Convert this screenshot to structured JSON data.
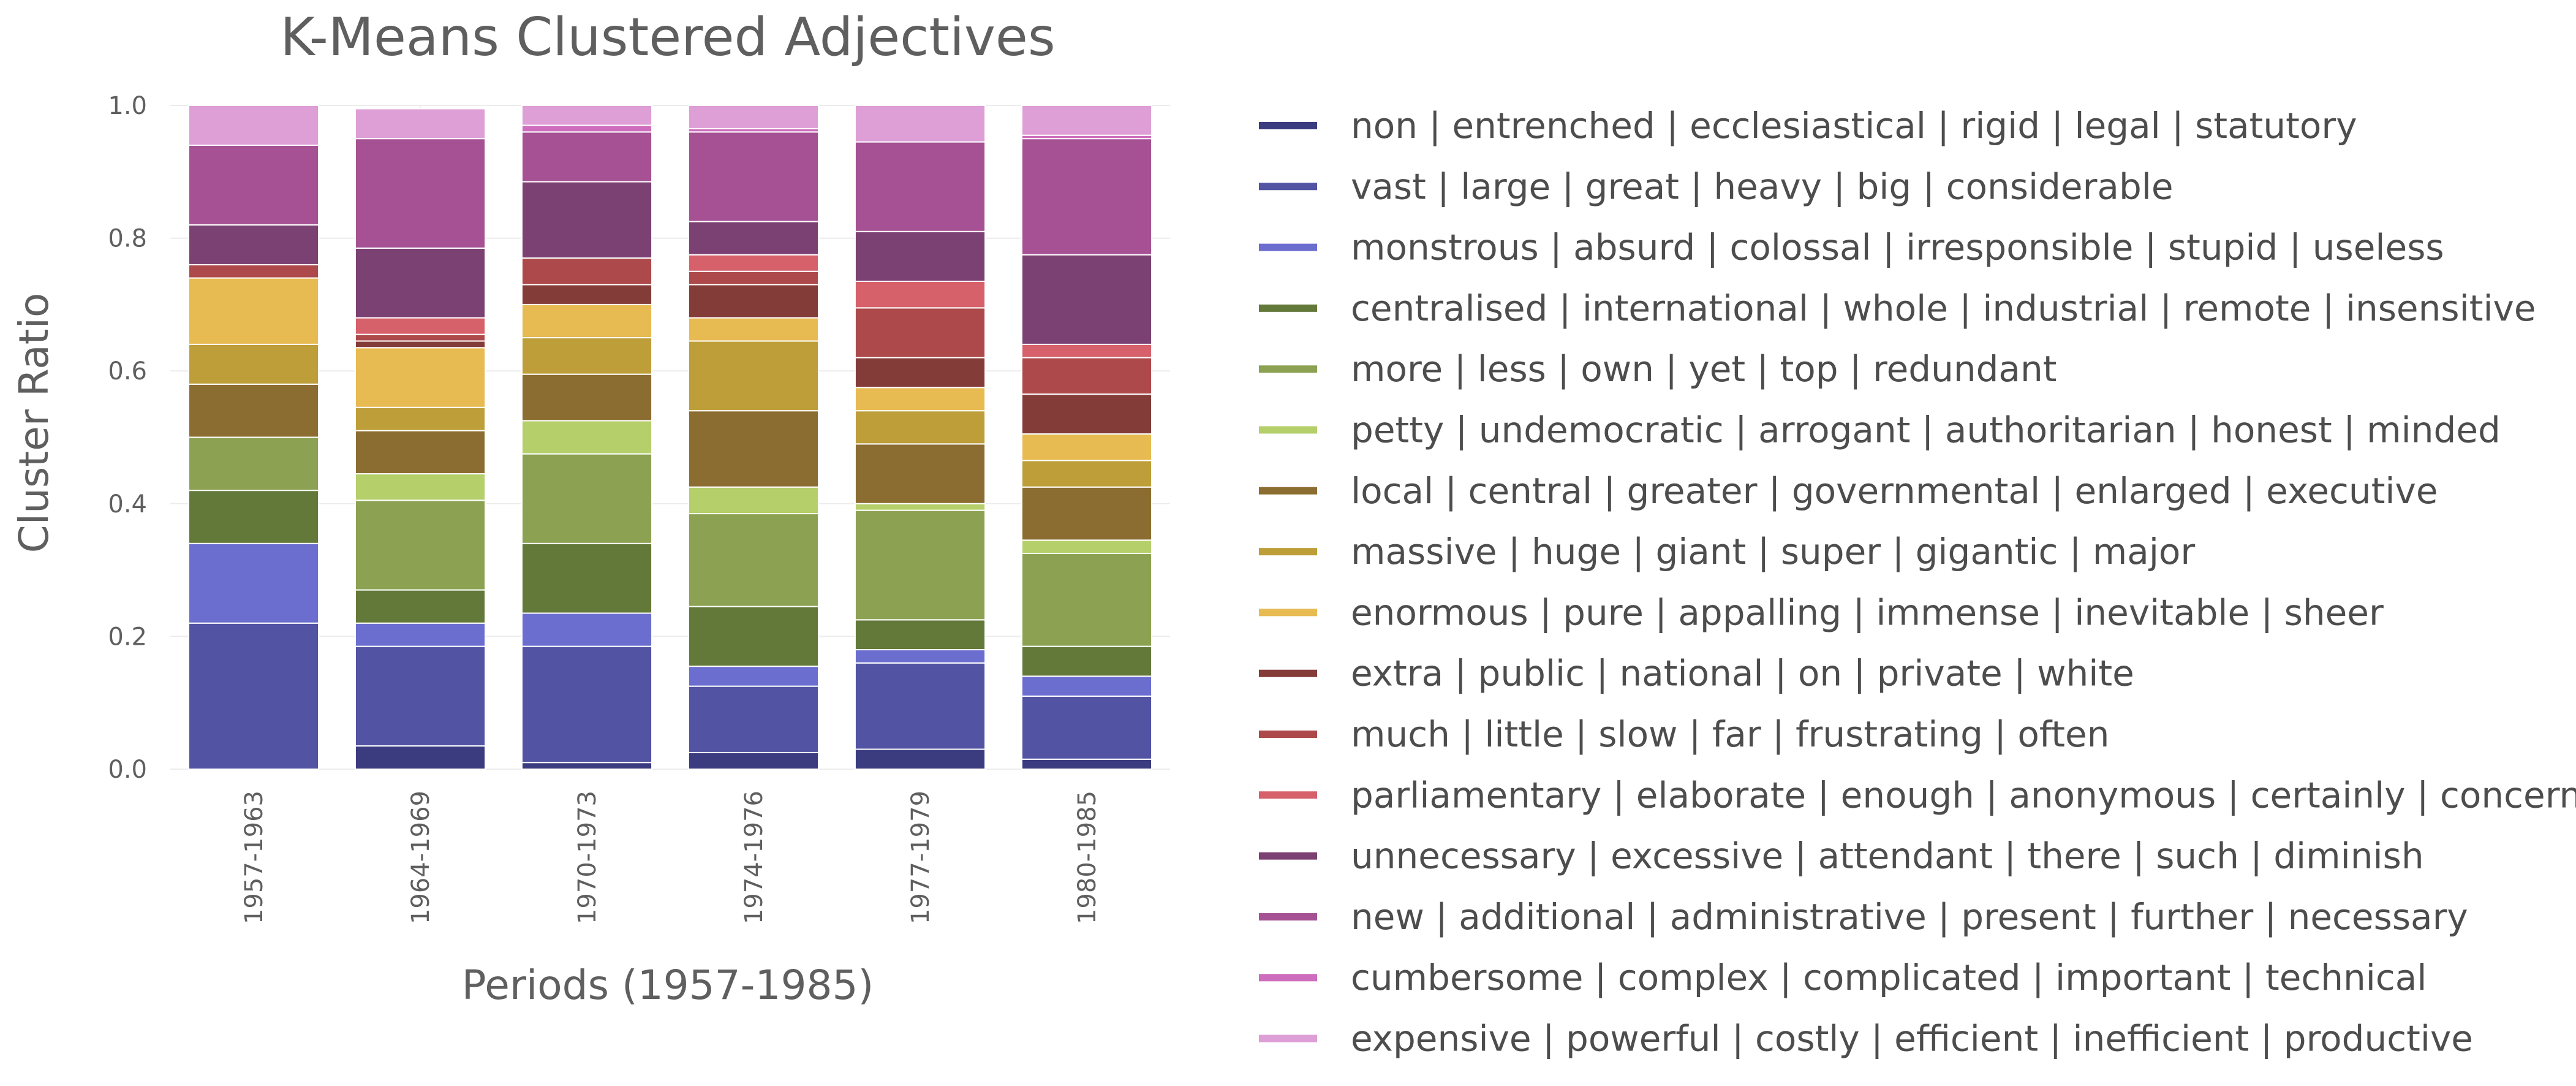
{
  "chart_data": {
    "type": "bar",
    "stacked": true,
    "title": "K-Means Clustered Adjectives",
    "xlabel": "Periods (1957-1985)",
    "ylabel": "Cluster Ratio",
    "ylim": [
      0,
      1.0
    ],
    "yticks": [
      "0.0",
      "0.2",
      "0.4",
      "0.6",
      "0.8",
      "1.0"
    ],
    "grid": true,
    "legend_position": "right",
    "categories": [
      "1957-1963",
      "1964-1969",
      "1970-1973",
      "1974-1976",
      "1977-1979",
      "1980-1985"
    ],
    "series": [
      {
        "name": "non | entrenched | ecclesiastical | rigid | legal | statutory",
        "color": "#3b3b80",
        "values": [
          0.0,
          0.035,
          0.01,
          0.025,
          0.03,
          0.015
        ]
      },
      {
        "name": "vast | large | great | heavy | big | considerable",
        "color": "#5253a3",
        "values": [
          0.22,
          0.15,
          0.175,
          0.1,
          0.13,
          0.095
        ]
      },
      {
        "name": "monstrous | absurd | colossal | irresponsible | stupid | useless",
        "color": "#6b6ecf",
        "values": [
          0.12,
          0.035,
          0.05,
          0.03,
          0.02,
          0.03
        ]
      },
      {
        "name": "centralised | international | whole | industrial | remote | insensitive",
        "color": "#637939",
        "values": [
          0.08,
          0.05,
          0.105,
          0.09,
          0.045,
          0.045
        ]
      },
      {
        "name": "more | less | own | yet | top | redundant",
        "color": "#8ca252",
        "values": [
          0.08,
          0.135,
          0.135,
          0.14,
          0.165,
          0.14
        ]
      },
      {
        "name": "petty | undemocratic | arrogant | authoritarian | honest | minded",
        "color": "#b5cf6b",
        "values": [
          0.0,
          0.04,
          0.05,
          0.04,
          0.01,
          0.02
        ]
      },
      {
        "name": "local | central | greater | governmental | enlarged | executive",
        "color": "#8c6d31",
        "values": [
          0.08,
          0.065,
          0.07,
          0.115,
          0.09,
          0.08
        ]
      },
      {
        "name": "massive | huge | giant | super | gigantic | major",
        "color": "#bd9e39",
        "values": [
          0.06,
          0.035,
          0.055,
          0.105,
          0.05,
          0.04
        ]
      },
      {
        "name": "enormous | pure | appalling | immense | inevitable | sheer",
        "color": "#e7ba52",
        "values": [
          0.1,
          0.09,
          0.05,
          0.035,
          0.035,
          0.04
        ]
      },
      {
        "name": "extra | public | national | on | private | white",
        "color": "#843c39",
        "values": [
          0.0,
          0.01,
          0.03,
          0.05,
          0.045,
          0.06
        ]
      },
      {
        "name": "much | little | slow | far | frustrating | often",
        "color": "#ad494a",
        "values": [
          0.02,
          0.01,
          0.04,
          0.02,
          0.075,
          0.055
        ]
      },
      {
        "name": "parliamentary | elaborate | enough | anonymous | certainly | concerned",
        "color": "#d6616b",
        "values": [
          0.0,
          0.025,
          0.0,
          0.025,
          0.04,
          0.02
        ]
      },
      {
        "name": "unnecessary | excessive | attendant | there | such | diminish",
        "color": "#7b4173",
        "values": [
          0.06,
          0.105,
          0.115,
          0.05,
          0.075,
          0.135
        ]
      },
      {
        "name": "new | additional | administrative | present | further | necessary",
        "color": "#a55194",
        "values": [
          0.12,
          0.165,
          0.075,
          0.135,
          0.135,
          0.175
        ]
      },
      {
        "name": "cumbersome | complex | complicated | important | technical",
        "color": "#ce6dbd",
        "values": [
          0.0,
          0.0,
          0.01,
          0.005,
          0.0,
          0.005
        ]
      },
      {
        "name": "expensive | powerful | costly | efficient | inefficient | productive",
        "color": "#de9ed6",
        "values": [
          0.06,
          0.045,
          0.03,
          0.035,
          0.055,
          0.045
        ]
      }
    ]
  }
}
